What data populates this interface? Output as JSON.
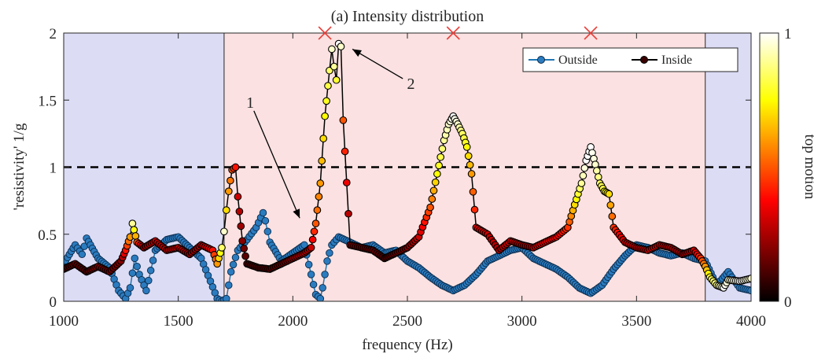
{
  "chart_data": {
    "type": "scatter",
    "title": "(a) Intensity distribution",
    "xlabel": "frequency (Hz)",
    "ylabel": "'resistivity' 1/g",
    "xlim": [
      1000,
      4000
    ],
    "ylim": [
      0,
      2
    ],
    "xticks": [
      1000,
      1500,
      2000,
      2500,
      3000,
      3500,
      4000
    ],
    "yticks": [
      0,
      0.5,
      1,
      1.5,
      2
    ],
    "xtick_labels": [
      "1000",
      "1500",
      "2000",
      "2500",
      "3000",
      "3500",
      "4000"
    ],
    "ytick_labels": [
      "0",
      "0.5",
      "1",
      "1.5",
      "2"
    ],
    "grid": false,
    "legend": {
      "placement": "top-right",
      "entries": [
        "Outside",
        "Inside"
      ]
    },
    "threshold_line": {
      "y": 1,
      "style": "dashed",
      "color": "#000000"
    },
    "regions": [
      {
        "x": [
          1000,
          1700
        ],
        "color": "#dcdcf5"
      },
      {
        "x": [
          1700,
          3800
        ],
        "color": "#fbe1e1"
      },
      {
        "x": [
          3800,
          4000
        ],
        "color": "#dcdcf5"
      }
    ],
    "markers_x": [
      2140,
      2700,
      3300
    ],
    "marker_color": "#e8413c",
    "annotations": [
      {
        "text": "1",
        "from": [
          1830,
          1.42
        ],
        "to": [
          2030,
          0.62
        ]
      },
      {
        "text": "2",
        "from": [
          2480,
          1.66
        ],
        "to": [
          2260,
          1.88
        ]
      }
    ],
    "colorbar": {
      "label": "top motion",
      "min": 0,
      "max": 1,
      "min_label": "0",
      "max_label": "1",
      "colormap": "hot"
    },
    "series": [
      {
        "name": "Outside",
        "line_color": "#1f77b4",
        "marker_color": "#2b7bbf",
        "x": [
          1000,
          1050,
          1080,
          1100,
          1150,
          1200,
          1240,
          1270,
          1290,
          1310,
          1330,
          1360,
          1400,
          1450,
          1500,
          1550,
          1600,
          1640,
          1670,
          1690,
          1710,
          1730,
          1760,
          1800,
          1840,
          1870,
          1880,
          1900,
          1950,
          2000,
          2050,
          2080,
          2100,
          2120,
          2130,
          2150,
          2170,
          2200,
          2250,
          2300,
          2350,
          2400,
          2450,
          2500,
          2550,
          2600,
          2650,
          2700,
          2750,
          2800,
          2850,
          2900,
          2950,
          3000,
          3050,
          3100,
          3150,
          3200,
          3250,
          3300,
          3350,
          3400,
          3450,
          3500,
          3550,
          3600,
          3650,
          3700,
          3750,
          3800,
          3850,
          3900,
          3950,
          4000
        ],
        "y": [
          0.28,
          0.42,
          0.35,
          0.47,
          0.32,
          0.25,
          0.08,
          0.02,
          0.1,
          0.32,
          0.2,
          0.08,
          0.38,
          0.46,
          0.48,
          0.4,
          0.32,
          0.15,
          0.02,
          0.0,
          0.02,
          0.22,
          0.38,
          0.46,
          0.55,
          0.66,
          0.6,
          0.44,
          0.3,
          0.36,
          0.42,
          0.2,
          0.05,
          0.02,
          0.1,
          0.3,
          0.42,
          0.48,
          0.44,
          0.4,
          0.42,
          0.36,
          0.38,
          0.3,
          0.25,
          0.18,
          0.12,
          0.08,
          0.12,
          0.2,
          0.3,
          0.34,
          0.38,
          0.4,
          0.32,
          0.28,
          0.24,
          0.18,
          0.1,
          0.06,
          0.12,
          0.24,
          0.34,
          0.42,
          0.4,
          0.36,
          0.34,
          0.36,
          0.32,
          0.3,
          0.12,
          0.22,
          0.1,
          0.08
        ]
      },
      {
        "name": "Inside",
        "line_color": "#000000",
        "x": [
          1000,
          1050,
          1100,
          1150,
          1200,
          1250,
          1270,
          1290,
          1300,
          1320,
          1350,
          1400,
          1450,
          1500,
          1550,
          1600,
          1650,
          1670,
          1690,
          1700,
          1710,
          1720,
          1735,
          1750,
          1760,
          1780,
          1800,
          1850,
          1900,
          1950,
          2000,
          2050,
          2080,
          2100,
          2120,
          2140,
          2160,
          2170,
          2180,
          2190,
          2200,
          2210,
          2220,
          2250,
          2300,
          2350,
          2400,
          2450,
          2500,
          2550,
          2600,
          2630,
          2660,
          2680,
          2700,
          2720,
          2740,
          2760,
          2780,
          2800,
          2850,
          2900,
          2950,
          3000,
          3050,
          3100,
          3150,
          3200,
          3230,
          3260,
          3280,
          3300,
          3320,
          3340,
          3360,
          3380,
          3400,
          3450,
          3500,
          3550,
          3600,
          3650,
          3700,
          3750,
          3780,
          3800,
          3820,
          3850,
          3880,
          3900,
          3950,
          4000
        ],
        "y": [
          0.24,
          0.28,
          0.22,
          0.26,
          0.22,
          0.3,
          0.38,
          0.48,
          0.58,
          0.44,
          0.4,
          0.45,
          0.38,
          0.4,
          0.35,
          0.42,
          0.38,
          0.28,
          0.4,
          0.52,
          0.68,
          0.82,
          0.98,
          1.0,
          0.78,
          0.45,
          0.28,
          0.25,
          0.24,
          0.28,
          0.32,
          0.36,
          0.4,
          0.58,
          0.88,
          1.38,
          1.72,
          1.88,
          1.75,
          1.65,
          1.92,
          1.9,
          1.35,
          0.42,
          0.4,
          0.38,
          0.32,
          0.36,
          0.4,
          0.48,
          0.7,
          0.95,
          1.2,
          1.32,
          1.38,
          1.32,
          1.25,
          1.15,
          0.95,
          0.55,
          0.5,
          0.38,
          0.45,
          0.42,
          0.4,
          0.44,
          0.48,
          0.55,
          0.72,
          0.88,
          1.05,
          1.15,
          1.02,
          0.88,
          0.82,
          0.8,
          0.55,
          0.44,
          0.4,
          0.38,
          0.42,
          0.4,
          0.35,
          0.38,
          0.32,
          0.26,
          0.18,
          0.12,
          0.1,
          0.16,
          0.15,
          0.17
        ],
        "c": [
          0.1,
          0.15,
          0.1,
          0.2,
          0.15,
          0.2,
          0.4,
          0.6,
          0.9,
          0.5,
          0.2,
          0.3,
          0.25,
          0.3,
          0.2,
          0.25,
          0.4,
          0.6,
          0.85,
          0.95,
          0.7,
          0.6,
          0.5,
          0.4,
          0.3,
          0.2,
          0.1,
          0.1,
          0.12,
          0.15,
          0.2,
          0.25,
          0.3,
          0.5,
          0.6,
          0.75,
          0.85,
          0.95,
          0.9,
          0.8,
          1.0,
          0.95,
          0.5,
          0.2,
          0.15,
          0.15,
          0.1,
          0.15,
          0.2,
          0.3,
          0.5,
          0.75,
          0.9,
          0.95,
          1.0,
          0.95,
          0.85,
          0.75,
          0.6,
          0.35,
          0.3,
          0.25,
          0.3,
          0.25,
          0.3,
          0.35,
          0.35,
          0.45,
          0.7,
          0.9,
          1.0,
          1.0,
          0.95,
          0.85,
          0.8,
          0.7,
          0.45,
          0.3,
          0.25,
          0.3,
          0.3,
          0.25,
          0.2,
          0.3,
          0.45,
          0.6,
          0.8,
          0.9,
          1.0,
          0.95,
          1.0,
          0.95
        ]
      }
    ]
  }
}
